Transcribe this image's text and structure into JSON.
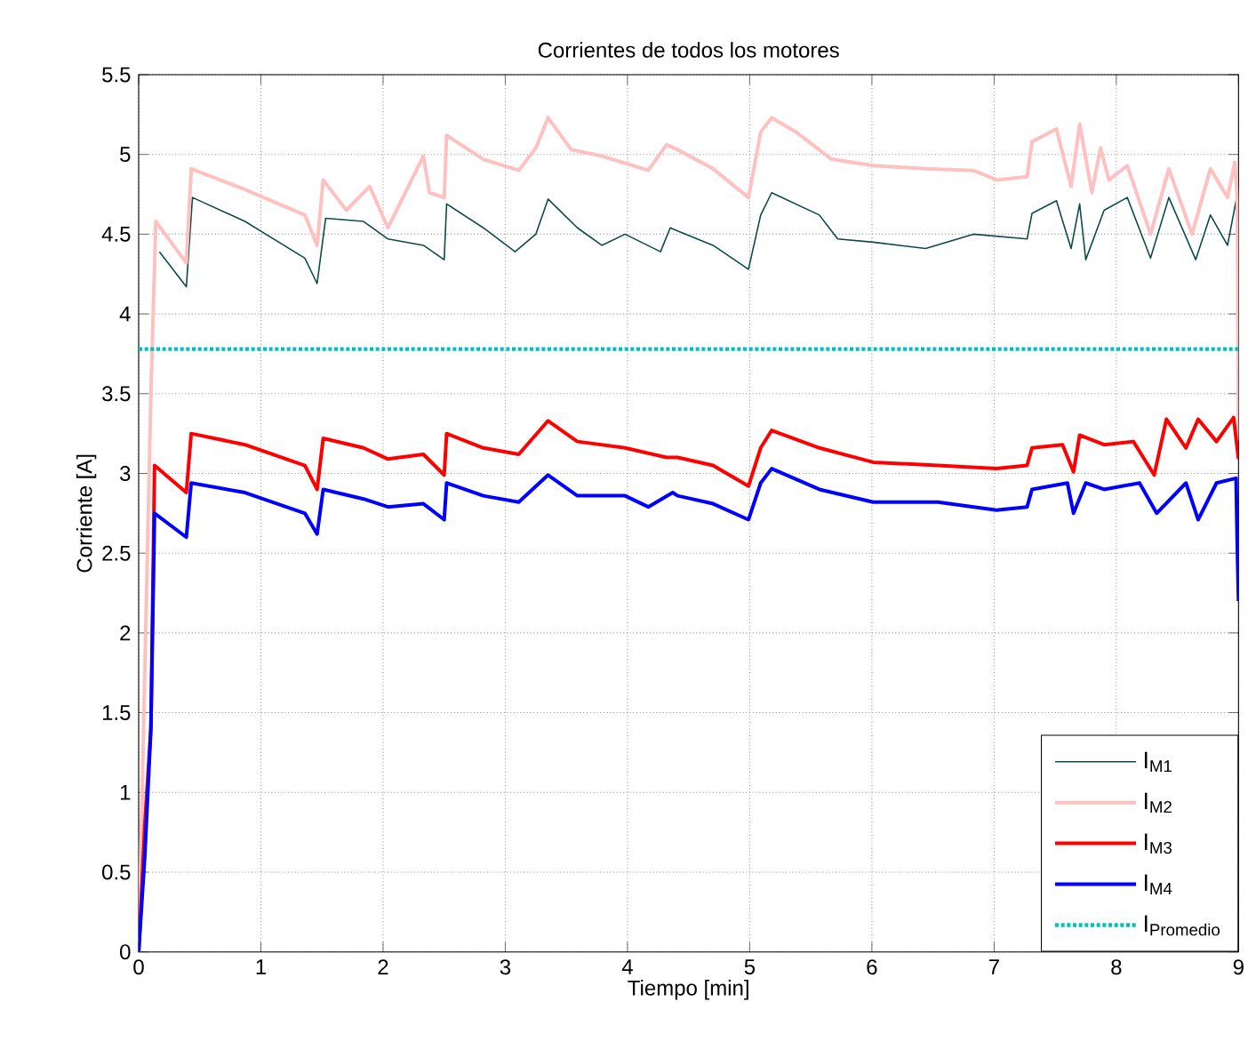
{
  "chart_data": {
    "type": "line",
    "title": "Corrientes de todos los motores",
    "xlabel": "Tiempo [min]",
    "ylabel": "Corriente [A]",
    "xlim": [
      0,
      9
    ],
    "ylim": [
      0,
      5.5
    ],
    "xticks": [
      0,
      1,
      2,
      3,
      4,
      5,
      6,
      7,
      8,
      9
    ],
    "yticks": [
      0,
      0.5,
      1,
      1.5,
      2,
      2.5,
      3,
      3.5,
      4,
      4.5,
      5,
      5.5
    ],
    "grid": true,
    "legend": "bottom right",
    "marker": "none",
    "series": [
      {
        "name": "I$_{M1}$",
        "color": "#0d4a4a",
        "line_style": "solid",
        "x": [
          0.17,
          0.39,
          0.44,
          0.87,
          1.36,
          1.46,
          1.53,
          1.84,
          2.04,
          2.33,
          2.5,
          2.52,
          2.82,
          3.08,
          3.25,
          3.35,
          3.59,
          3.79,
          3.98,
          4.27,
          4.35,
          4.41,
          4.7,
          4.99,
          5.09,
          5.18,
          5.57,
          5.72,
          6.01,
          6.44,
          6.83,
          7.27,
          7.31,
          7.51,
          7.63,
          7.7,
          7.75,
          7.9,
          8.09,
          8.28,
          8.43,
          8.65,
          8.77,
          8.91,
          8.99,
          9
        ],
        "values": [
          4.39,
          4.17,
          4.73,
          4.58,
          4.35,
          4.19,
          4.6,
          4.58,
          4.47,
          4.43,
          4.34,
          4.69,
          4.54,
          4.39,
          4.5,
          4.72,
          4.54,
          4.43,
          4.5,
          4.39,
          4.54,
          4.52,
          4.43,
          4.28,
          4.62,
          4.76,
          4.62,
          4.47,
          4.45,
          4.41,
          4.5,
          4.47,
          4.63,
          4.71,
          4.41,
          4.69,
          4.34,
          4.65,
          4.73,
          4.35,
          4.73,
          4.34,
          4.62,
          4.43,
          4.75,
          4.43
        ]
      },
      {
        "name": "I$_{M2}$",
        "color": "#ffc0c0",
        "line_style": "solid",
        "x": [
          0,
          0.1,
          0.14,
          0.39,
          0.43,
          0.87,
          1.36,
          1.46,
          1.51,
          1.7,
          1.89,
          2.04,
          2.33,
          2.38,
          2.5,
          2.52,
          2.82,
          3.11,
          3.25,
          3.35,
          3.54,
          3.79,
          4.17,
          4.32,
          4.41,
          4.7,
          4.99,
          5.09,
          5.18,
          5.38,
          5.67,
          6.01,
          6.44,
          6.83,
          7.02,
          7.27,
          7.31,
          7.51,
          7.63,
          7.7,
          7.8,
          7.87,
          7.94,
          8.09,
          8.28,
          8.43,
          8.62,
          8.77,
          8.91,
          8.97,
          8.99,
          9
        ],
        "values": [
          0,
          3.5,
          4.58,
          4.32,
          4.91,
          4.78,
          4.62,
          4.43,
          4.84,
          4.65,
          4.8,
          4.54,
          4.99,
          4.76,
          4.73,
          5.12,
          4.97,
          4.9,
          5.04,
          5.23,
          5.03,
          4.99,
          4.9,
          5.06,
          5.03,
          4.91,
          4.73,
          5.14,
          5.23,
          5.14,
          4.97,
          4.93,
          4.91,
          4.9,
          4.84,
          4.86,
          5.08,
          5.16,
          4.8,
          5.19,
          4.76,
          5.04,
          4.84,
          4.93,
          4.5,
          4.91,
          4.5,
          4.91,
          4.73,
          4.95,
          4.73,
          3.2
        ]
      },
      {
        "name": "I$_{M3}$",
        "color": "#ff0000",
        "line_style": "solid",
        "x": [
          0,
          0.05,
          0.1,
          0.13,
          0.39,
          0.43,
          0.87,
          1.36,
          1.46,
          1.51,
          1.84,
          2.04,
          2.33,
          2.5,
          2.52,
          2.82,
          3.11,
          3.35,
          3.59,
          3.98,
          4.32,
          4.41,
          4.7,
          4.99,
          5.09,
          5.18,
          5.57,
          6.01,
          6.54,
          7.02,
          7.27,
          7.31,
          7.56,
          7.65,
          7.7,
          7.9,
          8.14,
          8.31,
          8.41,
          8.57,
          8.67,
          8.82,
          8.96,
          9
        ],
        "values": [
          0,
          0.8,
          1.4,
          3.05,
          2.88,
          3.25,
          3.18,
          3.05,
          2.9,
          3.22,
          3.16,
          3.09,
          3.12,
          2.99,
          3.25,
          3.16,
          3.12,
          3.33,
          3.2,
          3.16,
          3.1,
          3.1,
          3.05,
          2.92,
          3.16,
          3.27,
          3.16,
          3.07,
          3.05,
          3.03,
          3.05,
          3.16,
          3.18,
          3.01,
          3.24,
          3.18,
          3.2,
          2.99,
          3.34,
          3.16,
          3.34,
          3.2,
          3.35,
          3.09
        ]
      },
      {
        "name": "I$_{M4}$",
        "color": "#0000ff",
        "line_style": "solid",
        "x": [
          0,
          0.05,
          0.1,
          0.13,
          0.39,
          0.43,
          0.87,
          1.36,
          1.46,
          1.51,
          1.84,
          2.04,
          2.33,
          2.5,
          2.52,
          2.82,
          3.11,
          3.35,
          3.59,
          3.98,
          4.17,
          4.37,
          4.41,
          4.7,
          4.99,
          5.09,
          5.18,
          5.57,
          6.01,
          6.54,
          7.02,
          7.27,
          7.31,
          7.6,
          7.65,
          7.75,
          7.9,
          8.19,
          8.33,
          8.57,
          8.67,
          8.82,
          8.98,
          8.99,
          9
        ],
        "values": [
          0,
          0.6,
          1.4,
          2.75,
          2.6,
          2.94,
          2.88,
          2.75,
          2.62,
          2.9,
          2.84,
          2.79,
          2.81,
          2.71,
          2.94,
          2.86,
          2.82,
          2.99,
          2.86,
          2.86,
          2.79,
          2.88,
          2.86,
          2.81,
          2.71,
          2.94,
          3.03,
          2.9,
          2.82,
          2.82,
          2.77,
          2.79,
          2.9,
          2.94,
          2.75,
          2.94,
          2.9,
          2.94,
          2.75,
          2.94,
          2.71,
          2.94,
          2.97,
          2.53,
          2.2
        ]
      },
      {
        "name": "I$_{Promedio}$",
        "color": "#00c0c0",
        "line_style": "dotted",
        "x": [
          0,
          9
        ],
        "values": [
          3.78,
          3.78
        ]
      }
    ]
  }
}
